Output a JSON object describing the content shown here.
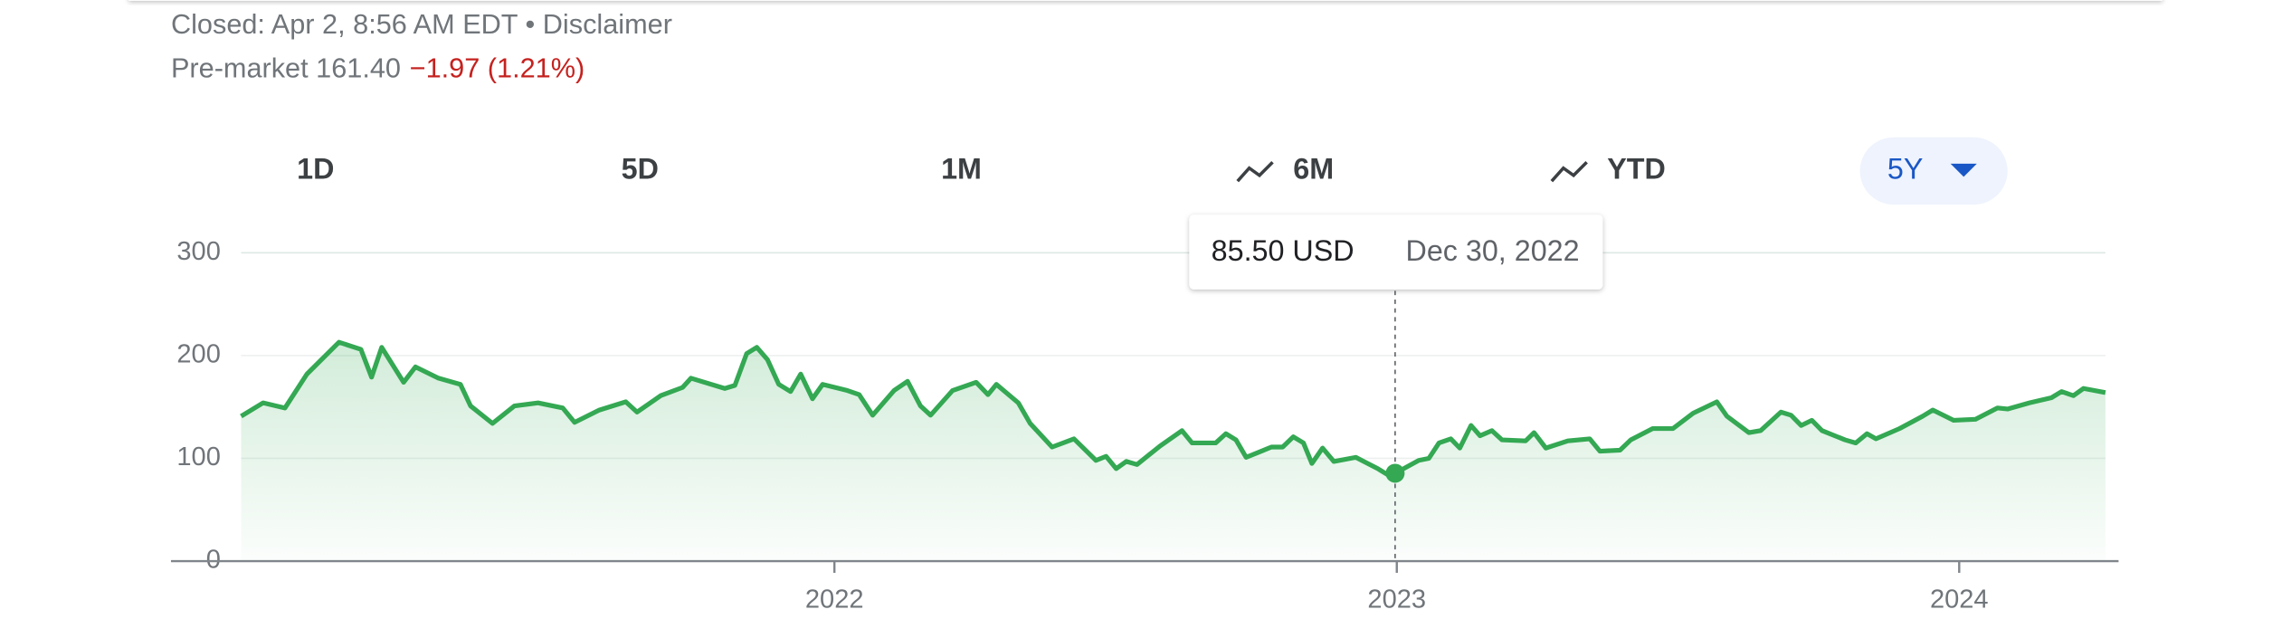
{
  "header": {
    "status": "Closed: Apr 2, 8:56 AM EDT • Disclaimer",
    "premarket_label": "Pre-market 161.40",
    "premarket_change": "−1.97 (1.21%)"
  },
  "tabs": [
    "1D",
    "5D",
    "1M",
    "6M",
    "YTD",
    "5Y"
  ],
  "tooltip": {
    "price": "85.50 USD",
    "date": "Dec 30, 2022"
  },
  "chart_data": {
    "type": "line",
    "color": "#34a853",
    "grid": true,
    "x": [
      2020.945,
      2020.984,
      2021.023,
      2021.062,
      2021.119,
      2021.158,
      2021.177,
      2021.195,
      2021.234,
      2021.255,
      2021.296,
      2021.335,
      2021.353,
      2021.392,
      2021.431,
      2021.473,
      2021.517,
      2021.538,
      2021.582,
      2021.629,
      2021.649,
      2021.691,
      2021.73,
      2021.745,
      2021.805,
      2021.823,
      2021.844,
      2021.862,
      2021.881,
      2021.901,
      2021.922,
      2021.94,
      2021.961,
      2021.979,
      2022.023,
      2022.044,
      2022.068,
      2022.106,
      2022.13,
      2022.153,
      2022.171,
      2022.21,
      2022.252,
      2022.273,
      2022.288,
      2022.327,
      2022.348,
      2022.387,
      2022.426,
      2022.465,
      2022.483,
      2022.501,
      2022.519,
      2022.538,
      2022.579,
      2022.618,
      2022.636,
      2022.678,
      2022.696,
      2022.714,
      2022.732,
      2022.777,
      2022.797,
      2022.816,
      2022.834,
      2022.849,
      2022.868,
      2022.888,
      2022.927,
      2022.966,
      2022.984,
      2022.997,
      2023.039,
      2023.057,
      2023.075,
      2023.096,
      2023.112,
      2023.132,
      2023.148,
      2023.169,
      2023.187,
      2023.229,
      2023.244,
      2023.265,
      2023.304,
      2023.343,
      2023.361,
      2023.397,
      2023.416,
      2023.455,
      2023.491,
      2023.527,
      2023.569,
      2023.587,
      2023.626,
      2023.647,
      2023.683,
      2023.701,
      2023.719,
      2023.738,
      2023.756,
      2023.797,
      2023.816,
      2023.836,
      2023.852,
      2023.894,
      2023.935,
      2023.953,
      2023.99,
      2024.029,
      2024.068,
      2024.086,
      2024.125,
      2024.164,
      2024.182,
      2024.203,
      2024.221,
      2024.26
    ],
    "series": [
      {
        "values": [
          141,
          154,
          149,
          182,
          213,
          206,
          179,
          208,
          174,
          189,
          178,
          172,
          151,
          134,
          151,
          154,
          149,
          135,
          147,
          155,
          145,
          161,
          169,
          178,
          168,
          171,
          202,
          208,
          196,
          172,
          165,
          182,
          158,
          172,
          166,
          162,
          142,
          166,
          175,
          151,
          142,
          166,
          174,
          162,
          172,
          154,
          134,
          111,
          119,
          98,
          102,
          90,
          97,
          94,
          112,
          127,
          115,
          115,
          124,
          118,
          101,
          111,
          111,
          121,
          115,
          95,
          110,
          97,
          101,
          90,
          84,
          85.5,
          98,
          100,
          115,
          119,
          110,
          132,
          122,
          127,
          118,
          117,
          125,
          110,
          117,
          119,
          107,
          108,
          118,
          129,
          129,
          144,
          155,
          141,
          125,
          127,
          145,
          142,
          132,
          137,
          127,
          118,
          115,
          124,
          119,
          129,
          141,
          147,
          137,
          138,
          149,
          148,
          154,
          159,
          165,
          161,
          168,
          164
        ]
      }
    ],
    "highlight_index": 71,
    "xlim": [
      2020.945,
      2024.26
    ],
    "xticks": [
      2022,
      2023,
      2024
    ],
    "ylim": [
      0,
      300
    ],
    "yticks": [
      0,
      100,
      200,
      300
    ]
  }
}
